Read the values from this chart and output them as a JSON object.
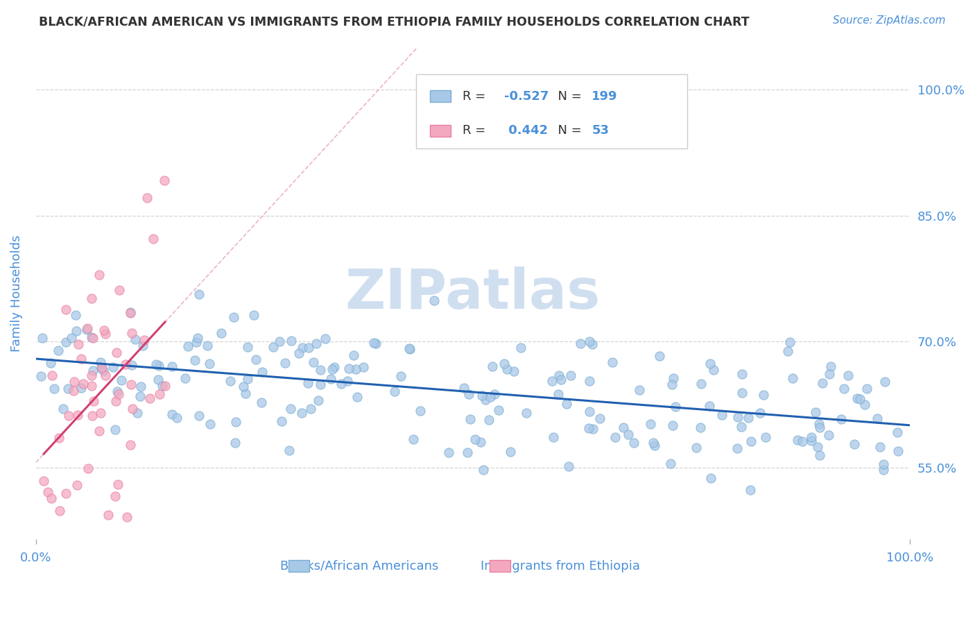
{
  "title": "BLACK/AFRICAN AMERICAN VS IMMIGRANTS FROM ETHIOPIA FAMILY HOUSEHOLDS CORRELATION CHART",
  "source_text": "Source: ZipAtlas.com",
  "ylabel": "Family Households",
  "x_ticklabels": [
    "0.0%",
    "100.0%"
  ],
  "y_ticklabels": [
    "55.0%",
    "70.0%",
    "85.0%",
    "100.0%"
  ],
  "y_tick_values": [
    0.55,
    0.7,
    0.85,
    1.0
  ],
  "x_lim": [
    0.0,
    1.0
  ],
  "y_lim": [
    0.465,
    1.05
  ],
  "legend_labels": [
    "Blacks/African Americans",
    "Immigrants from Ethiopia"
  ],
  "blue_dot_color": "#a8c8e8",
  "pink_dot_color": "#f4a8bf",
  "blue_dot_edge": "#7aaed0",
  "pink_dot_edge": "#e880a0",
  "blue_line_color": "#2060b0",
  "pink_line_color": "#d04070",
  "pink_dash_color": "#e8a0b8",
  "background_color": "#ffffff",
  "grid_color": "#c8c8c8",
  "title_color": "#333333",
  "axis_label_color": "#4a90d9",
  "legend_text_color": "#4a90d9",
  "watermark_text": "ZIPatlas",
  "watermark_color": "#d0dff0",
  "n_blue": 199,
  "n_pink": 53,
  "R_blue": -0.527,
  "R_pink": 0.442,
  "R_blue_str": "-0.527",
  "R_pink_str": "0.442",
  "seed_blue": 42,
  "seed_pink": 123
}
